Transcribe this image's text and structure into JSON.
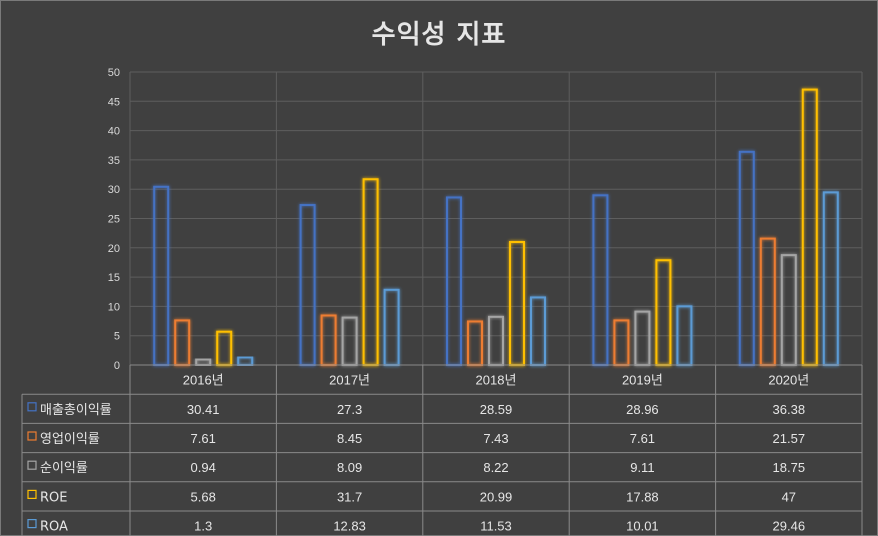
{
  "chart_data": {
    "type": "bar",
    "title": "수익성 지표",
    "categories": [
      "2016년",
      "2017년",
      "2018년",
      "2019년",
      "2020년"
    ],
    "ylim": [
      0,
      50
    ],
    "yticks": [
      0,
      5,
      10,
      15,
      20,
      25,
      30,
      35,
      40,
      45,
      50
    ],
    "grid": true,
    "legend": "data-table",
    "series": [
      {
        "name": "매출총이익률",
        "color": "#4472C4",
        "values": [
          30.41,
          27.3,
          28.59,
          28.96,
          36.38
        ]
      },
      {
        "name": "영업이익률",
        "color": "#ED7D31",
        "values": [
          7.61,
          8.45,
          7.43,
          7.61,
          21.57
        ]
      },
      {
        "name": "순이익률",
        "color": "#A5A5A5",
        "values": [
          0.94,
          8.09,
          8.22,
          9.11,
          18.75
        ]
      },
      {
        "name": "ROE",
        "color": "#FFC000",
        "values": [
          5.68,
          31.7,
          20.99,
          17.88,
          47
        ]
      },
      {
        "name": "ROA",
        "color": "#5B9BD5",
        "values": [
          1.3,
          12.83,
          11.53,
          10.01,
          29.46
        ]
      }
    ]
  }
}
